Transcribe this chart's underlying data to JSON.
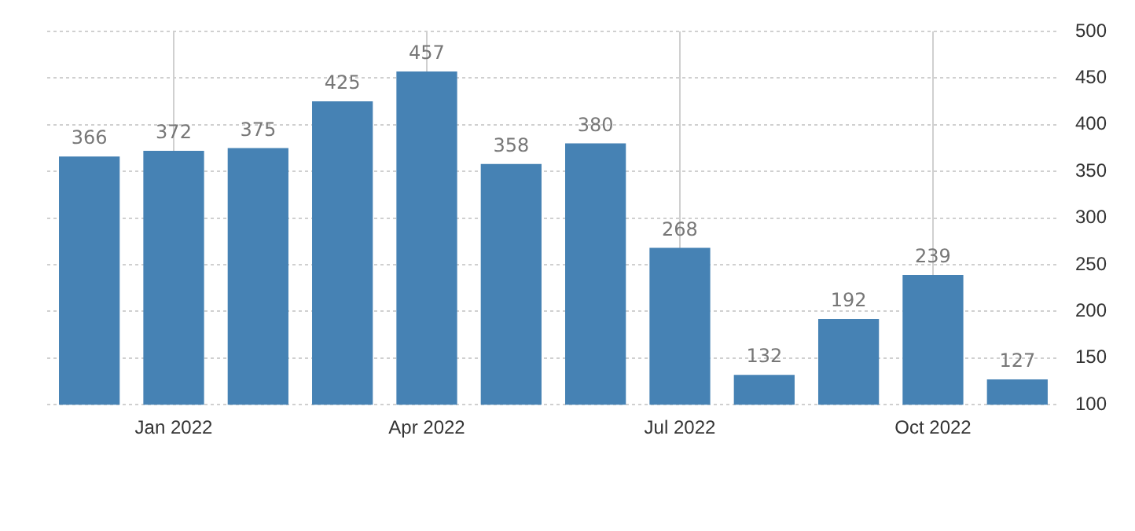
{
  "chart_data": {
    "type": "bar",
    "categories": [
      null,
      "Jan 2022",
      null,
      null,
      "Apr 2022",
      null,
      null,
      "Jul 2022",
      null,
      null,
      "Oct 2022",
      null
    ],
    "values": [
      366,
      372,
      375,
      425,
      457,
      358,
      380,
      268,
      132,
      192,
      239,
      127
    ],
    "color": "#4682b4",
    "ylim": [
      100,
      500
    ],
    "yticks": [
      100,
      150,
      200,
      250,
      300,
      350,
      400,
      450,
      500
    ],
    "grid": true,
    "data_labels": true
  }
}
